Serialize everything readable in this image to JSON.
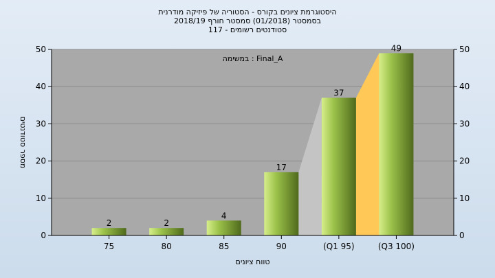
{
  "chart_data": {
    "type": "bar",
    "title_lines": [
      "היסטוגרמת ציונים בקורס - הסטוריה של פיזיקה מודרנית",
      "בסמסטר  (01/2018)  סמסטר חורף 2018/19",
      "סטודנטים רשומים - 117"
    ],
    "legend_text": "במשימה : Final_A",
    "xlabel": "טווח ציונים",
    "ylabel": "מספר סטודנטים",
    "categories": [
      "75",
      "80",
      "85",
      "90",
      "(Q1 95)",
      "(Q3 100)"
    ],
    "values": [
      2,
      2,
      4,
      17,
      37,
      49
    ],
    "ylim": [
      0,
      50
    ],
    "yticks": [
      0,
      10,
      20,
      30,
      40,
      50
    ],
    "grid": true,
    "colors": {
      "plot_bg": "#a9a9a9",
      "bar_light": "#d6ee8a",
      "bar_mid": "#9cc24a",
      "bar_dark": "#4f6a1c",
      "shade_gray": "#c4c4c4",
      "shade_orange": "#ffc857"
    }
  }
}
